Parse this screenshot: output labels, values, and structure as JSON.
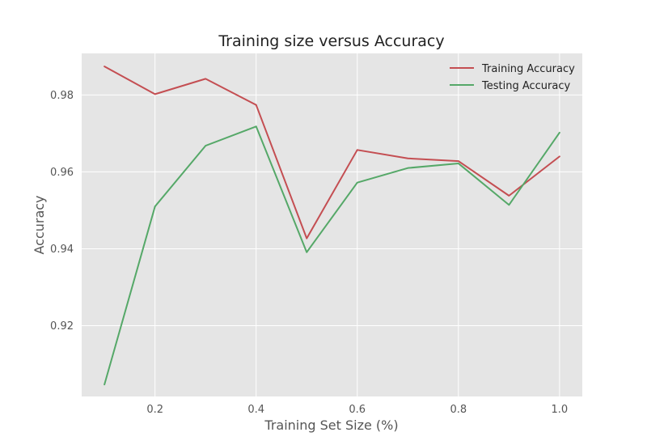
{
  "chart_data": {
    "type": "line",
    "title": "Training size versus Accuracy",
    "xlabel": "Training Set Size (%)",
    "ylabel": "Accuracy",
    "x": [
      0.1,
      0.2,
      0.3,
      0.4,
      0.5,
      0.6,
      0.7,
      0.8,
      0.9,
      1.0
    ],
    "xlim": [
      0.055,
      1.045
    ],
    "ylim": [
      0.9016,
      0.9908
    ],
    "xticks": [
      0.2,
      0.4,
      0.6,
      0.8,
      1.0
    ],
    "xtick_labels": [
      "0.2",
      "0.4",
      "0.6",
      "0.8",
      "1.0"
    ],
    "yticks": [
      0.92,
      0.94,
      0.96,
      0.98
    ],
    "ytick_labels": [
      "0.92",
      "0.94",
      "0.96",
      "0.98"
    ],
    "grid": true,
    "legend_position": "top-right",
    "style": {
      "plot_background": "#e5e5e5",
      "grid_color": "#ffffff"
    },
    "series": [
      {
        "name": "Training Accuracy",
        "color": "#c44e52",
        "values": [
          0.9874,
          0.9802,
          0.9842,
          0.9774,
          0.9427,
          0.9657,
          0.9635,
          0.9628,
          0.9538,
          0.964
        ]
      },
      {
        "name": "Testing Accuracy",
        "color": "#55a868",
        "values": [
          0.9047,
          0.951,
          0.9668,
          0.9718,
          0.9391,
          0.9572,
          0.961,
          0.9622,
          0.9514,
          0.9702
        ]
      }
    ]
  }
}
